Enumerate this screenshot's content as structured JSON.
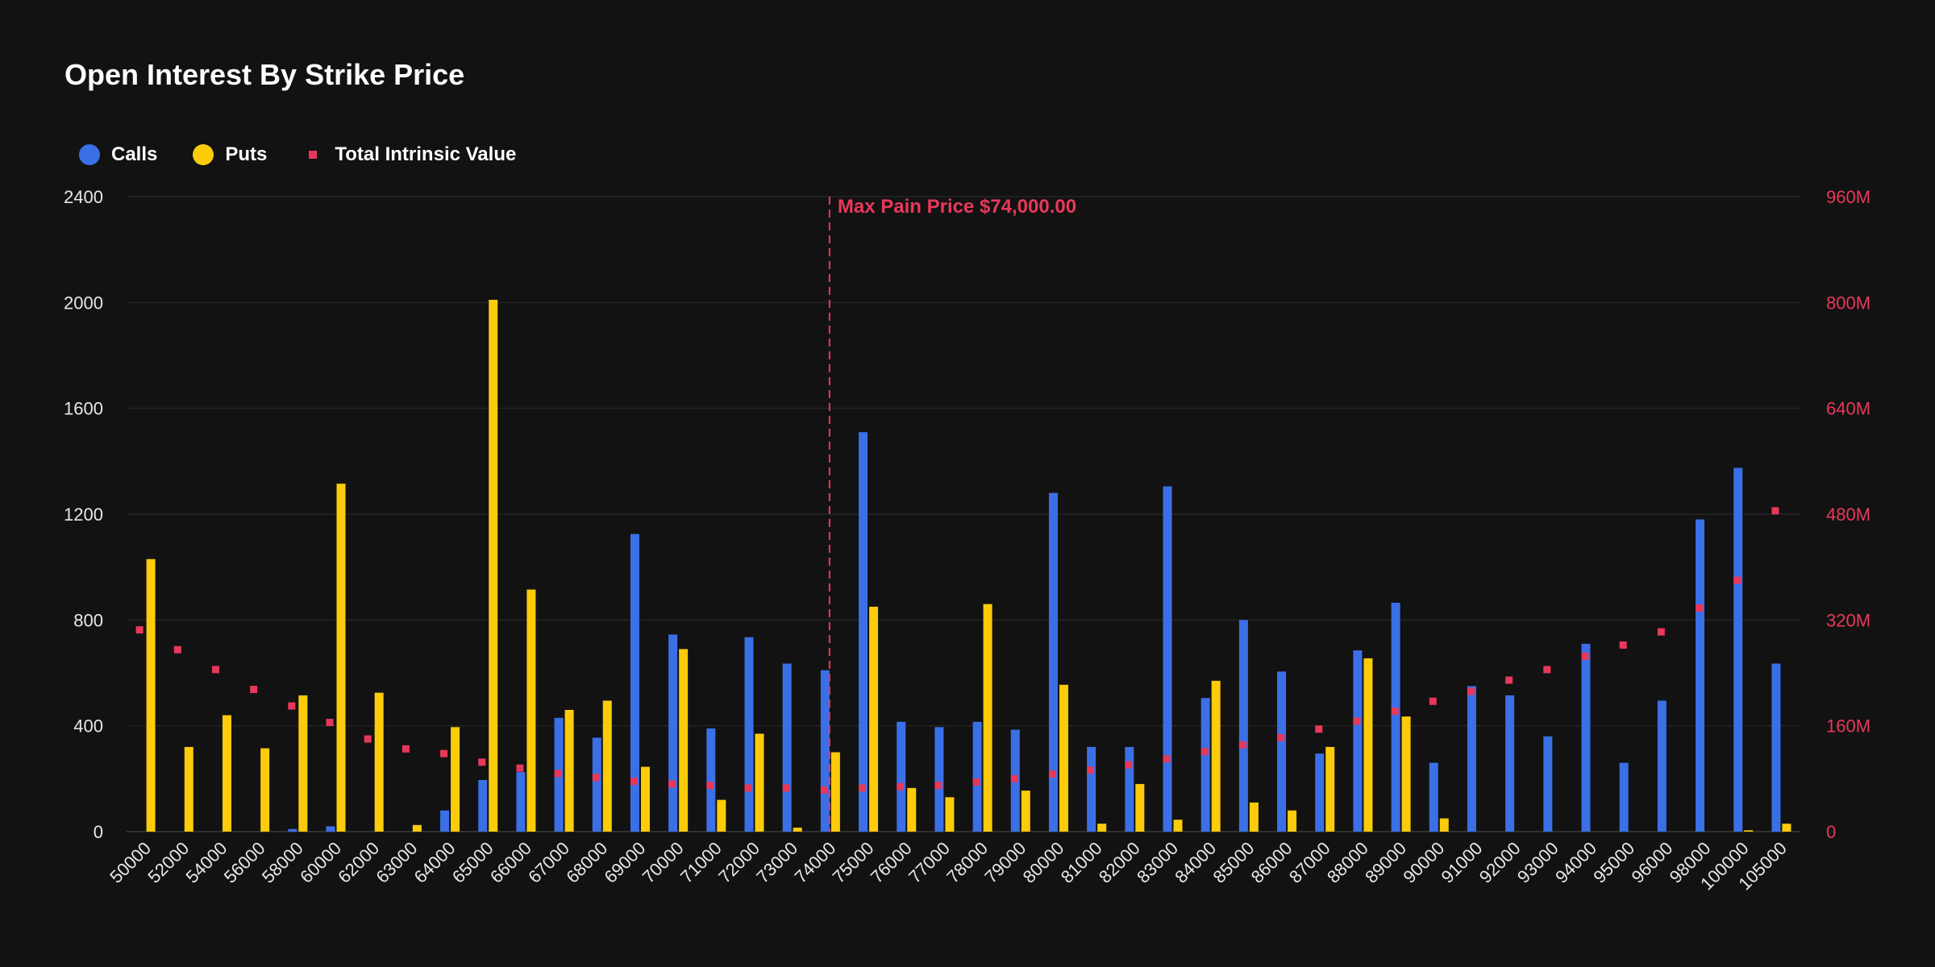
{
  "chart_data": {
    "type": "bar",
    "title": "Open Interest By Strike Price",
    "colors": {
      "calls": "#3b6fe6",
      "puts": "#fccb0a",
      "intrinsic": "#e8385a",
      "background": "#121212"
    },
    "legend": [
      {
        "name": "Calls",
        "marker": "circle",
        "color": "#3b6fe6"
      },
      {
        "name": "Puts",
        "marker": "circle",
        "color": "#fccb0a"
      },
      {
        "name": "Total Intrinsic Value",
        "marker": "square",
        "color": "#e8385a"
      }
    ],
    "legend_position": "top-left",
    "grid": true,
    "categories": [
      "50000",
      "52000",
      "54000",
      "56000",
      "58000",
      "60000",
      "62000",
      "63000",
      "64000",
      "65000",
      "66000",
      "67000",
      "68000",
      "69000",
      "70000",
      "71000",
      "72000",
      "73000",
      "74000",
      "75000",
      "76000",
      "77000",
      "78000",
      "79000",
      "80000",
      "81000",
      "82000",
      "83000",
      "84000",
      "85000",
      "86000",
      "87000",
      "88000",
      "89000",
      "90000",
      "91000",
      "92000",
      "93000",
      "94000",
      "95000",
      "96000",
      "98000",
      "100000",
      "105000"
    ],
    "y_left": {
      "ylim": [
        0,
        2400
      ],
      "ticks": [
        "0",
        "400",
        "800",
        "1200",
        "1600",
        "2000",
        "2400"
      ]
    },
    "y_right": {
      "ylim": [
        0,
        960000000
      ],
      "ticks": [
        "0",
        "160M",
        "320M",
        "480M",
        "640M",
        "800M",
        "960M"
      ]
    },
    "series": [
      {
        "name": "Calls",
        "axis": "left",
        "values": [
          0,
          0,
          0,
          0,
          10,
          20,
          0,
          0,
          80,
          195,
          225,
          430,
          355,
          1125,
          745,
          390,
          735,
          635,
          610,
          1510,
          415,
          395,
          415,
          385,
          1280,
          320,
          320,
          1305,
          505,
          800,
          605,
          295,
          685,
          865,
          260,
          550,
          515,
          360,
          710,
          260,
          495,
          1180,
          1375,
          635
        ]
      },
      {
        "name": "Puts",
        "axis": "left",
        "values": [
          1030,
          320,
          440,
          315,
          515,
          1315,
          525,
          25,
          395,
          2010,
          915,
          460,
          495,
          245,
          690,
          120,
          370,
          15,
          300,
          850,
          165,
          130,
          860,
          155,
          555,
          30,
          180,
          45,
          570,
          110,
          80,
          320,
          655,
          435,
          50,
          0,
          0,
          0,
          0,
          0,
          0,
          0,
          5,
          30
        ]
      },
      {
        "name": "Total Intrinsic Value",
        "axis": "right",
        "values": [
          305000000,
          275000000,
          245000000,
          215000000,
          190000000,
          165000000,
          140000000,
          125000000,
          118000000,
          105000000,
          96000000,
          88000000,
          82000000,
          76000000,
          72000000,
          70000000,
          66000000,
          66000000,
          63000000,
          66000000,
          68000000,
          70000000,
          75000000,
          80000000,
          87000000,
          93000000,
          101000000,
          110000000,
          121000000,
          131000000,
          142000000,
          155000000,
          167000000,
          182000000,
          197000000,
          212000000,
          229000000,
          245000000,
          265000000,
          282000000,
          302000000,
          338000000,
          380000000,
          485000000
        ]
      }
    ],
    "annotation": {
      "label": "Max Pain Price $74,000.00",
      "category": "74000"
    }
  }
}
